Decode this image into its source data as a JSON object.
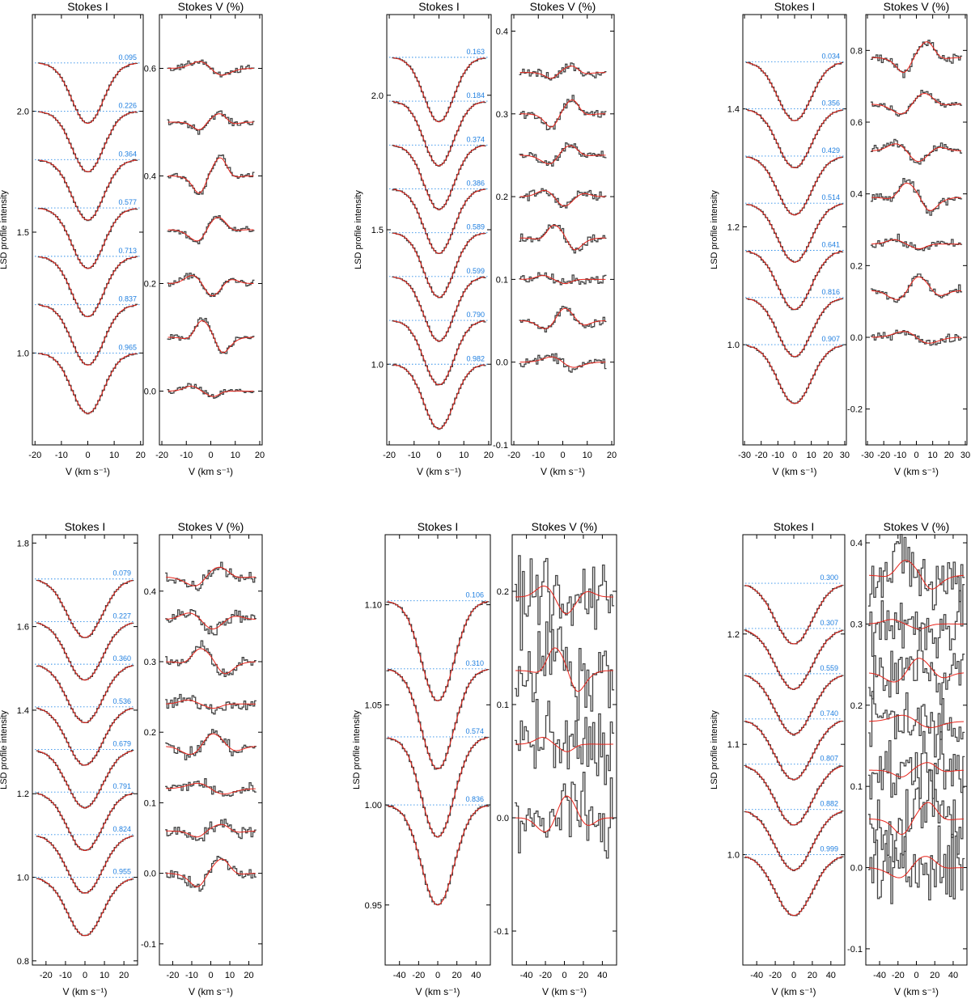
{
  "chart_data": [
    {
      "type": "line",
      "stokes_i": {
        "title": "Stokes I",
        "xlabel": "V (km s⁻¹)",
        "ylabel": "LSD profile intensity",
        "xlim": [
          -21,
          21
        ],
        "ylim": [
          0.62,
          2.4
        ],
        "xticks": [
          "-20",
          "-10",
          "0",
          "10",
          "20"
        ],
        "yticks": [
          "1.0",
          "1.5",
          "2.0"
        ],
        "depth": 0.25,
        "width": 6,
        "offset_step": 0.2,
        "phases": [
          "0.095",
          "0.226",
          "0.364",
          "0.577",
          "0.713",
          "0.837",
          "0.965"
        ]
      },
      "stokes_v": {
        "title": "Stokes V (%)",
        "xlabel": "V (km s⁻¹)",
        "xlim": [
          -21,
          21
        ],
        "ylim": [
          -0.1,
          0.7
        ],
        "xticks": [
          "-20",
          "-10",
          "0",
          "10",
          "20"
        ],
        "yticks": [
          "0.0",
          "0.2",
          "0.4",
          "0.6"
        ],
        "offset_step": 0.1,
        "noise": 0.004
      }
    },
    {
      "type": "line",
      "stokes_i": {
        "title": "Stokes I",
        "xlabel": "V (km s⁻¹)",
        "ylabel": "LSD profile intensity",
        "xlim": [
          -21,
          21
        ],
        "ylim": [
          0.7,
          2.3
        ],
        "xticks": [
          "-20",
          "-10",
          "0",
          "10",
          "20"
        ],
        "yticks": [
          "1.0",
          "1.5",
          "2.0"
        ],
        "depth": 0.24,
        "width": 6,
        "offset_step": 0.163,
        "phases": [
          "0.163",
          "0.184",
          "0.374",
          "0.386",
          "0.589",
          "0.599",
          "0.790",
          "0.982"
        ]
      },
      "stokes_v": {
        "title": "Stokes V (%)",
        "xlabel": "V (km s⁻¹)",
        "xlim": [
          -21,
          21
        ],
        "ylim": [
          -0.1,
          0.42
        ],
        "xticks": [
          "-20",
          "-10",
          "0",
          "10",
          "20"
        ],
        "yticks": [
          "-0.1",
          "0.0",
          "0.1",
          "0.2",
          "0.3",
          "0.4"
        ],
        "offset_step": 0.05,
        "noise": 0.004
      }
    },
    {
      "type": "line",
      "stokes_i": {
        "title": "Stokes I",
        "xlabel": "V (km s⁻¹)",
        "ylabel": "LSD profile intensity",
        "xlim": [
          -31,
          31
        ],
        "ylim": [
          0.83,
          1.56
        ],
        "xticks": [
          "-30",
          "-20",
          "-10",
          "0",
          "10",
          "20",
          "30"
        ],
        "yticks": [
          "1.0",
          "1.2",
          "1.4"
        ],
        "depth": 0.1,
        "width": 10,
        "offset_step": 0.08,
        "phases": [
          "0.034",
          "0.356",
          "0.429",
          "0.514",
          "0.641",
          "0.816",
          "0.907"
        ]
      },
      "stokes_v": {
        "title": "Stokes V (%)",
        "xlabel": "V (km s⁻¹)",
        "xlim": [
          -31,
          31
        ],
        "ylim": [
          -0.3,
          0.9
        ],
        "xticks": [
          "-30",
          "-20",
          "-10",
          "0",
          "10",
          "20",
          "30"
        ],
        "yticks": [
          "-0.2",
          "0.0",
          "0.2",
          "0.4",
          "0.6",
          "0.8"
        ],
        "offset_step": 0.13,
        "noise": 0.008
      }
    },
    {
      "type": "line",
      "stokes_i": {
        "title": "Stokes I",
        "xlabel": "V (km s⁻¹)",
        "ylabel": "LSD profile intensity",
        "xlim": [
          -27,
          27
        ],
        "ylim": [
          0.79,
          1.82
        ],
        "xticks": [
          "-20",
          "-10",
          "0",
          "10",
          "20"
        ],
        "yticks": [
          "0.8",
          "1.0",
          "1.2",
          "1.4",
          "1.6",
          "1.8"
        ],
        "depth": 0.14,
        "width": 9,
        "offset_step": 0.102,
        "phases": [
          "0.079",
          "0.227",
          "0.360",
          "0.536",
          "0.679",
          "0.791",
          "0.824",
          "0.955"
        ]
      },
      "stokes_v": {
        "title": "Stokes V (%)",
        "xlabel": "V (km s⁻¹)",
        "xlim": [
          -27,
          27
        ],
        "ylim": [
          -0.13,
          0.48
        ],
        "xticks": [
          "-20",
          "-10",
          "0",
          "10",
          "20"
        ],
        "yticks": [
          "-0.1",
          "0.0",
          "0.1",
          "0.2",
          "0.3",
          "0.4"
        ],
        "offset_step": 0.06,
        "noise": 0.006
      }
    },
    {
      "type": "line",
      "stokes_i": {
        "title": "Stokes I",
        "xlabel": "V (km s⁻¹)",
        "ylabel": "LSD profile intensity",
        "xlim": [
          -55,
          55
        ],
        "ylim": [
          0.92,
          1.135
        ],
        "xticks": [
          "-40",
          "-20",
          "0",
          "20",
          "40"
        ],
        "yticks": [
          "0.95",
          "1.00",
          "1.05",
          "1.10"
        ],
        "depth": 0.05,
        "width": 17,
        "offset_step": 0.034,
        "phases": [
          "0.106",
          "0.310",
          "0.574",
          "0.836"
        ]
      },
      "stokes_v": {
        "title": "Stokes V (%)",
        "xlabel": "V (km s⁻¹)",
        "xlim": [
          -55,
          55
        ],
        "ylim": [
          -0.13,
          0.25
        ],
        "xticks": [
          "-40",
          "-20",
          "0",
          "20",
          "40"
        ],
        "yticks": [
          "-0.1",
          "0.0",
          "0.1",
          "0.2"
        ],
        "offset_step": 0.065,
        "noise": 0.012
      }
    },
    {
      "type": "line",
      "stokes_i": {
        "title": "Stokes I",
        "xlabel": "V (km s⁻¹)",
        "ylabel": "LSD profile intensity",
        "xlim": [
          -55,
          55
        ],
        "ylim": [
          0.9,
          1.29
        ],
        "xticks": [
          "-40",
          "-20",
          "0",
          "20",
          "40"
        ],
        "yticks": [
          "1.0",
          "1.1",
          "1.2"
        ],
        "depth": 0.055,
        "width": 20,
        "offset_step": 0.041,
        "phases": [
          "0.300",
          "0.307",
          "0.559",
          "0.740",
          "0.807",
          "0.882",
          "0.999"
        ]
      },
      "stokes_v": {
        "title": "Stokes V (%)",
        "xlabel": "V (km s⁻¹)",
        "xlim": [
          -55,
          55
        ],
        "ylim": [
          -0.12,
          0.41
        ],
        "xticks": [
          "-40",
          "-20",
          "0",
          "20",
          "40"
        ],
        "yticks": [
          "-0.1",
          "0.0",
          "0.1",
          "0.2",
          "0.3",
          "0.4"
        ],
        "offset_step": 0.06,
        "noise": 0.016
      }
    }
  ]
}
